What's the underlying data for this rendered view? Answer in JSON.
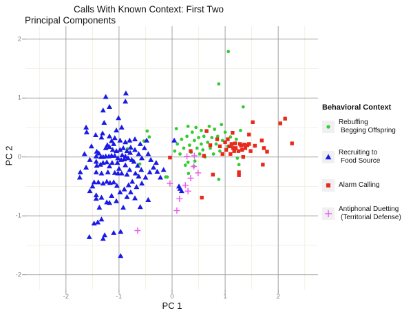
{
  "title": {
    "line1": "Calls With Known Context: First Two",
    "line2": "Principal Components"
  },
  "axes": {
    "x_label": "PC 1",
    "y_label": "PC 2"
  },
  "legend": {
    "title": "Behavioral Context",
    "items": [
      {
        "label_lines": [
          "Rebuffing",
          "Begging Offspring"
        ],
        "marker": "circle",
        "color": "#33cc33"
      },
      {
        "label_lines": [
          "Recruiting to",
          "Food Source"
        ],
        "marker": "triangle",
        "color": "#1a1ae6"
      },
      {
        "label_lines": [
          "Alarm Calling"
        ],
        "marker": "square",
        "color": "#e8291c"
      },
      {
        "label_lines": [
          "Antiphonal Duetting",
          "(Territorial Defense)"
        ],
        "marker": "plus",
        "color": "#ee5dee"
      }
    ]
  },
  "colors": {
    "major_grid": "#a3a3a3",
    "minor_grid": "#f3efe3",
    "tick": "#8a8a8a",
    "tick_label": "#808080",
    "panel_bg": "#ffffff",
    "legend_key_bg": "#f0f0f0"
  },
  "chart_data": {
    "type": "scatter",
    "title": "Calls With Known Context: First Two Principal Components",
    "xlabel": "PC 1",
    "ylabel": "PC 2",
    "xlim": [
      -2.75,
      2.75
    ],
    "ylim": [
      -2.25,
      2.22
    ],
    "x_ticks": [
      -2,
      -1,
      0,
      1,
      2
    ],
    "y_ticks": [
      -2,
      -1,
      0,
      1,
      2
    ],
    "grid": "major gray on white, minor cream at 0.5 intervals",
    "legend_position": "right",
    "legend_title": "Behavioral Context",
    "series": [
      {
        "name": "Rebuffing Begging Offspring",
        "marker": "circle",
        "color": "#33cc33",
        "points": [
          [
            1.06,
            1.79
          ],
          [
            0.88,
            1.24
          ],
          [
            1.34,
            0.85
          ],
          [
            -0.47,
            0.44
          ],
          [
            -0.43,
            0.34
          ],
          [
            -0.53,
            0.27
          ],
          [
            -0.84,
            0.14
          ],
          [
            -0.73,
            -0.07
          ],
          [
            -0.61,
            -0.12
          ],
          [
            -0.12,
            -0.34
          ],
          [
            -0.09,
            -0.34
          ],
          [
            0.05,
            0.1
          ],
          [
            0.08,
            0.48
          ],
          [
            0.1,
            0.22
          ],
          [
            0.15,
            0.05
          ],
          [
            0.18,
            0.3
          ],
          [
            0.22,
            0.15
          ],
          [
            0.25,
            -0.14
          ],
          [
            0.28,
            0.35
          ],
          [
            0.3,
            -0.09
          ],
          [
            0.3,
            0.52
          ],
          [
            0.33,
            0.2
          ],
          [
            0.36,
            0.08
          ],
          [
            0.38,
            0.42
          ],
          [
            0.41,
            -0.16
          ],
          [
            0.42,
            0.28
          ],
          [
            0.43,
            -0.07
          ],
          [
            0.45,
            0.5
          ],
          [
            0.47,
            0.15
          ],
          [
            0.5,
            0.33
          ],
          [
            0.52,
            0.05
          ],
          [
            0.55,
            0.45
          ],
          [
            0.55,
            0.22
          ],
          [
            0.58,
            0.12
          ],
          [
            0.6,
            0.35
          ],
          [
            0.62,
            0.0
          ],
          [
            0.67,
            0.25
          ],
          [
            0.7,
            0.52
          ],
          [
            0.72,
            0.15
          ],
          [
            0.75,
            0.33
          ],
          [
            0.78,
            0.05
          ],
          [
            0.8,
            0.47
          ],
          [
            0.83,
            0.22
          ],
          [
            0.86,
            0.35
          ],
          [
            0.88,
            -0.38
          ],
          [
            0.9,
            0.1
          ],
          [
            0.93,
            0.55
          ],
          [
            0.95,
            0.28
          ],
          [
            1.0,
            0.42
          ],
          [
            1.05,
            0.18
          ],
          [
            1.1,
            0.34
          ],
          [
            1.13,
            0.2
          ],
          [
            1.21,
            0.3
          ],
          [
            1.23,
            -0.02
          ],
          [
            1.26,
            -0.13
          ],
          [
            1.29,
            0.45
          ],
          [
            0.31,
            -0.28
          ]
        ]
      },
      {
        "name": "Recruiting to Food Source",
        "marker": "triangle",
        "color": "#1a1ae6",
        "points": [
          [
            -1.25,
            1.02
          ],
          [
            -0.87,
            1.08
          ],
          [
            -0.88,
            0.94
          ],
          [
            -1.3,
            0.79
          ],
          [
            -1.18,
            0.85
          ],
          [
            -1.01,
            0.66
          ],
          [
            -1.28,
            0.58
          ],
          [
            -1.62,
            0.5
          ],
          [
            -1.61,
            0.42
          ],
          [
            -1.44,
            0.37
          ],
          [
            -1.31,
            0.4
          ],
          [
            -1.33,
            0.33
          ],
          [
            -1.18,
            0.35
          ],
          [
            -1.08,
            0.32
          ],
          [
            -0.98,
            0.28
          ],
          [
            -0.88,
            0.25
          ],
          [
            -0.8,
            0.28
          ],
          [
            -1.05,
            0.45
          ],
          [
            -0.95,
            0.5
          ],
          [
            -0.7,
            0.3
          ],
          [
            -0.6,
            0.22
          ],
          [
            -0.52,
            0.15
          ],
          [
            -0.48,
            0.28
          ],
          [
            -1.14,
            0.27
          ],
          [
            -1.1,
            0.22
          ],
          [
            -1.22,
            0.2
          ],
          [
            -1.18,
            0.17
          ],
          [
            -1.25,
            0.15
          ],
          [
            -1.52,
            0.18
          ],
          [
            -1.12,
            0.12
          ],
          [
            -1.05,
            0.1
          ],
          [
            -0.98,
            0.12
          ],
          [
            -0.92,
            0.15
          ],
          [
            -0.85,
            0.1
          ],
          [
            -0.78,
            0.16
          ],
          [
            -0.7,
            0.12
          ],
          [
            -0.63,
            0.05
          ],
          [
            -1.65,
            0.05
          ],
          [
            -1.42,
            0.09
          ],
          [
            -1.38,
            0.06
          ],
          [
            -1.43,
            0.01
          ],
          [
            -1.34,
            0.0
          ],
          [
            -1.3,
            0.0
          ],
          [
            -1.25,
            0.01
          ],
          [
            -1.19,
            0.01
          ],
          [
            -1.14,
            0.02
          ],
          [
            -1.08,
            0.02
          ],
          [
            -1.02,
            -0.02
          ],
          [
            -0.96,
            -0.05
          ],
          [
            -0.94,
            0.03
          ],
          [
            -0.9,
            -0.04
          ],
          [
            -0.88,
            0.01
          ],
          [
            -0.83,
            -0.02
          ],
          [
            -0.79,
            0.07
          ],
          [
            -0.76,
            -0.05
          ],
          [
            -0.57,
            -0.02
          ],
          [
            -0.45,
            0.05
          ],
          [
            -1.55,
            -0.05
          ],
          [
            -0.4,
            -0.05
          ],
          [
            -1.43,
            -0.08
          ],
          [
            -1.42,
            -0.15
          ],
          [
            -1.35,
            -0.13
          ],
          [
            -1.3,
            -0.1
          ],
          [
            -1.23,
            -0.09
          ],
          [
            -1.18,
            -0.16
          ],
          [
            -1.13,
            -0.1
          ],
          [
            -1.03,
            -0.1
          ],
          [
            -1.0,
            -0.2
          ],
          [
            -0.88,
            -0.14
          ],
          [
            -0.72,
            -0.08
          ],
          [
            -0.65,
            -0.15
          ],
          [
            -0.58,
            -0.22
          ],
          [
            -0.3,
            -0.1
          ],
          [
            -0.35,
            -0.18
          ],
          [
            -0.16,
            -0.22
          ],
          [
            -1.73,
            -0.26
          ],
          [
            -1.62,
            -0.18
          ],
          [
            -1.43,
            -0.26
          ],
          [
            -1.33,
            -0.28
          ],
          [
            -1.21,
            -0.26
          ],
          [
            -1.08,
            -0.27
          ],
          [
            -1.02,
            -0.28
          ],
          [
            -0.95,
            -0.28
          ],
          [
            -0.85,
            -0.3
          ],
          [
            -0.8,
            -0.22
          ],
          [
            -0.69,
            -0.28
          ],
          [
            -0.63,
            -0.33
          ],
          [
            -0.42,
            -0.26
          ],
          [
            -0.28,
            -0.25
          ],
          [
            -0.22,
            -0.35
          ],
          [
            -1.74,
            -0.35
          ],
          [
            -1.47,
            -0.43
          ],
          [
            -1.39,
            -0.43
          ],
          [
            -1.3,
            -0.45
          ],
          [
            -1.23,
            -0.42
          ],
          [
            -1.17,
            -0.44
          ],
          [
            -1.1,
            -0.43
          ],
          [
            -1.04,
            -0.49
          ],
          [
            -0.82,
            -0.48
          ],
          [
            -0.75,
            -0.42
          ],
          [
            -0.67,
            -0.51
          ],
          [
            -0.57,
            -0.45
          ],
          [
            -0.5,
            -0.35
          ],
          [
            -1.5,
            -0.5
          ],
          [
            -1.55,
            -0.58
          ],
          [
            -1.43,
            -0.65
          ],
          [
            -1.43,
            -0.71
          ],
          [
            -1.33,
            -0.69
          ],
          [
            -1.37,
            -0.86
          ],
          [
            -1.23,
            -0.77
          ],
          [
            -1.18,
            -0.78
          ],
          [
            -1.14,
            -0.66
          ],
          [
            -0.92,
            -0.86
          ],
          [
            -0.9,
            -0.55
          ],
          [
            -0.98,
            -0.6
          ],
          [
            -1.05,
            -0.75
          ],
          [
            -0.85,
            -0.68
          ],
          [
            -0.78,
            -0.6
          ],
          [
            -0.7,
            -0.7
          ],
          [
            -0.6,
            -0.85
          ],
          [
            -0.45,
            -0.73
          ],
          [
            -1.33,
            -1.06
          ],
          [
            -1.47,
            -1.13
          ],
          [
            -1.4,
            -1.11
          ],
          [
            -1.56,
            -1.36
          ],
          [
            -1.27,
            -1.33
          ],
          [
            -1.3,
            -1.39
          ],
          [
            -1.1,
            -1.29
          ],
          [
            -0.97,
            -1.27
          ],
          [
            -0.97,
            -1.68
          ],
          [
            0.04,
            0.28
          ],
          [
            0.13,
            -0.5
          ],
          [
            0.15,
            -0.54
          ],
          [
            0.18,
            -0.58
          ]
        ]
      },
      {
        "name": "Alarm Calling",
        "marker": "square",
        "color": "#e8291c",
        "points": [
          [
            2.13,
            0.65
          ],
          [
            2.04,
            0.57
          ],
          [
            2.26,
            0.23
          ],
          [
            1.52,
            0.59
          ],
          [
            1.45,
            0.38
          ],
          [
            1.14,
            0.41
          ],
          [
            1.19,
            0.23
          ],
          [
            1.3,
            0.19
          ],
          [
            1.36,
            0.21
          ],
          [
            1.42,
            0.2
          ],
          [
            1.45,
            0.22
          ],
          [
            1.56,
            0.19
          ],
          [
            1.69,
            0.28
          ],
          [
            1.73,
            0.15
          ],
          [
            1.79,
            0.09
          ],
          [
            1.17,
            0.1
          ],
          [
            1.34,
            0.0
          ],
          [
            1.71,
            -0.13
          ],
          [
            1.26,
            -0.26
          ],
          [
            1.26,
            -0.31
          ],
          [
            0.77,
            -0.3
          ],
          [
            0.56,
            -0.69
          ],
          [
            -0.04,
            -0.01
          ],
          [
            0.35,
            0.1
          ],
          [
            0.65,
            0.44
          ],
          [
            0.85,
            0.3
          ],
          [
            0.9,
            0.18
          ],
          [
            0.95,
            0.05
          ],
          [
            1.0,
            0.25
          ],
          [
            1.02,
            0.12
          ],
          [
            1.05,
            0.3
          ],
          [
            1.08,
            0.18
          ],
          [
            1.1,
            0.05
          ],
          [
            1.12,
            0.22
          ],
          [
            1.15,
            0.15
          ],
          [
            1.2,
            0.15
          ],
          [
            1.25,
            0.1
          ],
          [
            1.28,
            0.22
          ],
          [
            1.32,
            0.12
          ],
          [
            1.38,
            0.15
          ],
          [
            1.48,
            0.1
          ],
          [
            0.6,
            0.02
          ],
          [
            0.72,
            0.2
          ]
        ]
      },
      {
        "name": "Antiphonal Duetting (Territorial Defense)",
        "marker": "plus",
        "color": "#ee5dee",
        "points": [
          [
            -0.65,
            -1.25
          ],
          [
            -0.04,
            -0.45
          ],
          [
            0.09,
            -0.91
          ],
          [
            0.14,
            -0.71
          ],
          [
            0.25,
            -0.48
          ],
          [
            0.3,
            -0.58
          ],
          [
            0.35,
            -0.36
          ],
          [
            0.28,
            0.01
          ],
          [
            0.42,
            0.02
          ],
          [
            0.41,
            -0.16
          ],
          [
            0.49,
            -0.27
          ]
        ]
      }
    ]
  }
}
